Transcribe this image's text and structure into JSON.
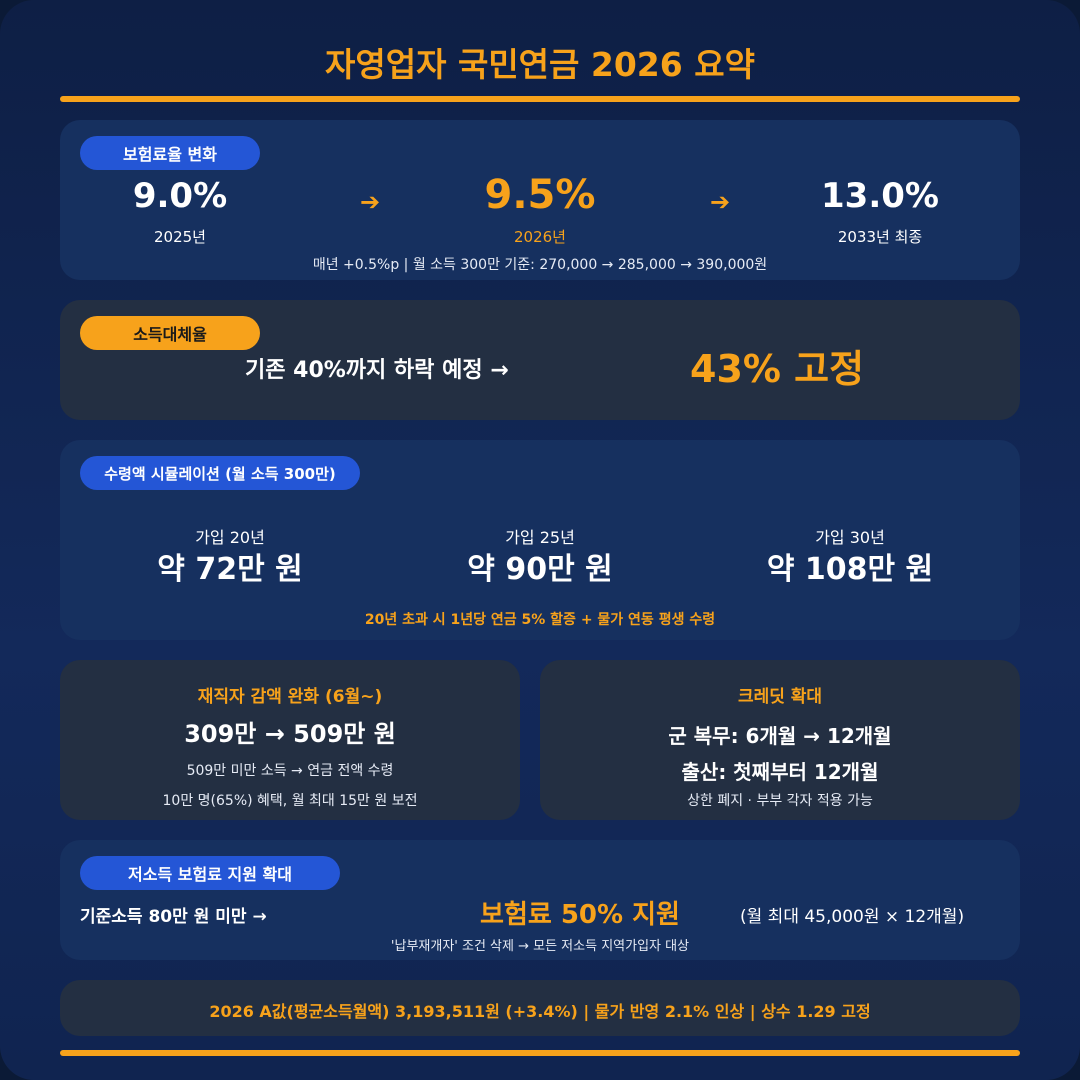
{
  "title": "자영업자 국민연금 2026 요약",
  "rate": {
    "label": "보험료율 변화",
    "steps": [
      {
        "value": "9.0%",
        "year": "2025년"
      },
      {
        "value": "9.5%",
        "year": "2026년"
      },
      {
        "value": "13.0%",
        "year": "2033년 최종"
      }
    ],
    "arrow": "➔",
    "note": "매년 +0.5%p | 월 소득 300만 기준: 270,000 → 285,000 → 390,000원"
  },
  "replacement": {
    "label": "소득대체율",
    "before": "기존 40%까지 하락 예정 →",
    "after": "43% 고정"
  },
  "simulation": {
    "label": "수령액 시뮬레이션 (월 소득 300만)",
    "items": [
      {
        "period": "가입 20년",
        "amount": "약 72만 원"
      },
      {
        "period": "가입 25년",
        "amount": "약 90만 원"
      },
      {
        "period": "가입 30년",
        "amount": "약 108만 원"
      }
    ],
    "note": "20년 초과 시 1년당 연금 5% 할증 + 물가 연동 평생 수령"
  },
  "reemployed": {
    "title": "재직자 감액 완화 (6월~)",
    "main": "309만 → 509만 원",
    "line1": "509만 미만 소득 → 연금 전액 수령",
    "line2": "10만 명(65%) 혜택, 월 최대 15만 원 보전"
  },
  "credit": {
    "title": "크레딧 확대",
    "line1": "군 복무: 6개월 → 12개월",
    "line2": "출산: 첫째부터 12개월",
    "line3": "상한 폐지 · 부부 각자 적용 가능"
  },
  "lowincome": {
    "label": "저소득 보험료 지원 확대",
    "criteria": "기준소득 80만 원 미만 →",
    "support": "보험료 50% 지원",
    "limit": "(월 최대 45,000원 × 12개월)",
    "note": "'납부재개자' 조건 삭제 → 모든 저소득 지역가입자 대상"
  },
  "footer": "2026 A값(평균소득월액) 3,193,511원 (+3.4%) | 물가 반영 2.1% 인상 | 상수 1.29 고정",
  "colors": {
    "accent": "#f7a21b",
    "blue": "#2456d6",
    "background": "#0e1f45"
  }
}
